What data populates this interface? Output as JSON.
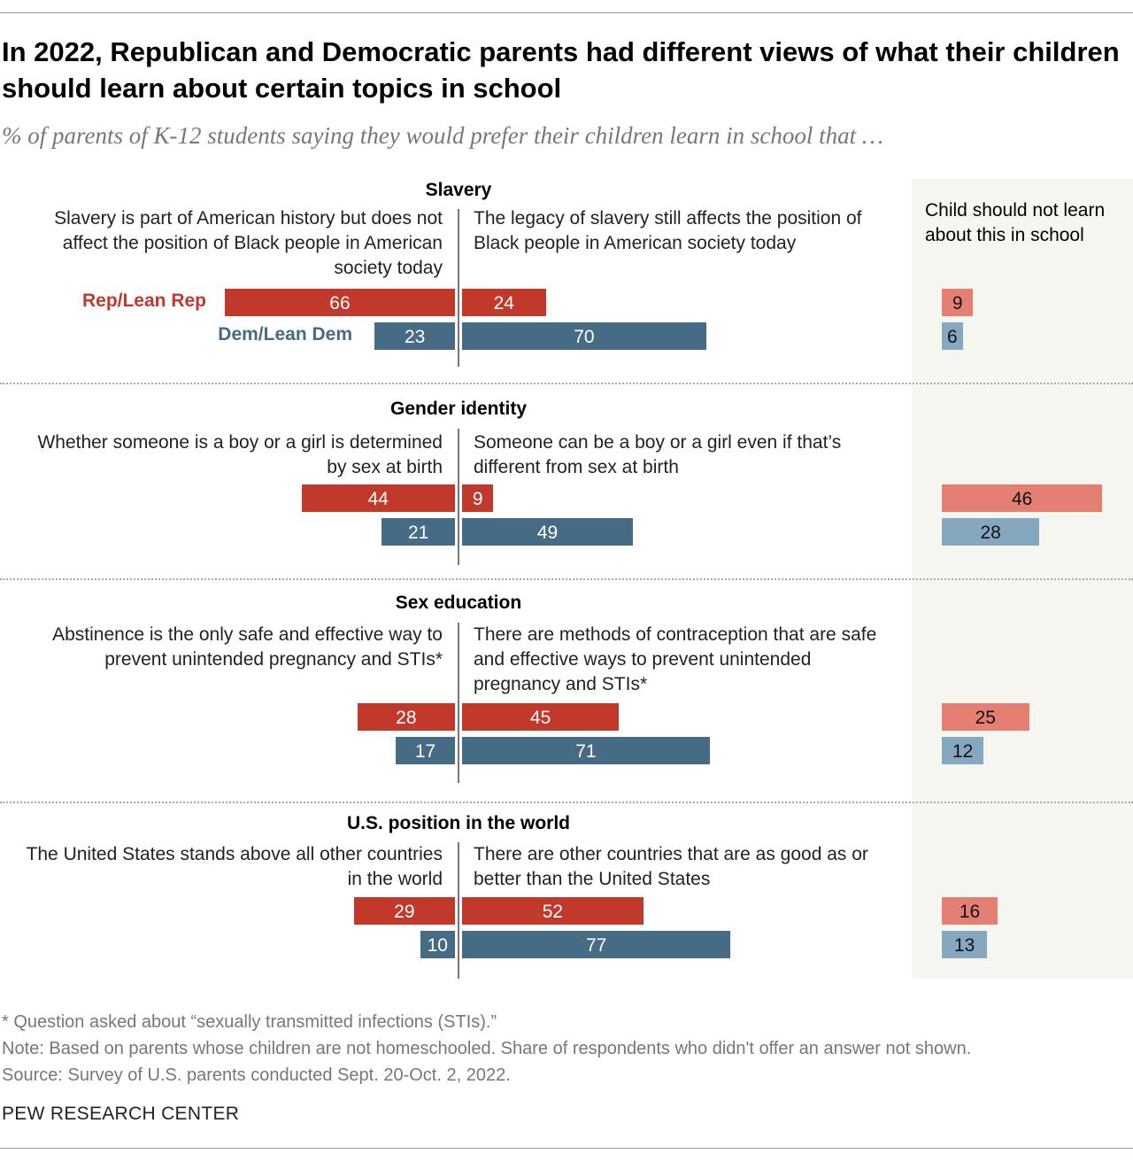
{
  "title": "In 2022, Republican and Democratic parents had different views of what their children should learn about certain topics in school",
  "subtitle": "% of parents of K-12 students saying they would prefer their children learn in school that …",
  "third_column_header": "Child should not learn about this in school",
  "colors": {
    "rep": "#c0392b",
    "dem": "#456b85",
    "rep_light": "#e57f73",
    "dem_light": "#85a8c0",
    "panel_bg": "#f6f6f1"
  },
  "chart_data": {
    "type": "bar",
    "orientation": "horizontal-diverging",
    "series_labels": [
      "Rep/Lean Rep",
      "Dem/Lean Dem"
    ],
    "sections": [
      {
        "topic": "Slavery",
        "left_label": "Slavery is part of American history but does not affect the position of Black people in American society today",
        "right_label": "The legacy of slavery still affects the position of Black people in American society today",
        "rep": {
          "left": 66,
          "right": 24,
          "not_learn": 9
        },
        "dem": {
          "left": 23,
          "right": 70,
          "not_learn": 6
        }
      },
      {
        "topic": "Gender identity",
        "left_label": "Whether someone is a boy or a girl is determined by sex at birth",
        "right_label": "Someone can be a boy or a girl even if that’s different from sex at birth",
        "rep": {
          "left": 44,
          "right": 9,
          "not_learn": 46
        },
        "dem": {
          "left": 21,
          "right": 49,
          "not_learn": 28
        }
      },
      {
        "topic": "Sex education",
        "left_label": "Abstinence is the only safe and effective way to prevent unintended pregnancy and STIs*",
        "right_label": "There are methods of contraception that are safe and effective ways to prevent unintended pregnancy and STIs*",
        "rep": {
          "left": 28,
          "right": 45,
          "not_learn": 25
        },
        "dem": {
          "left": 17,
          "right": 71,
          "not_learn": 12
        }
      },
      {
        "topic": "U.S. position in the world",
        "left_label": "The United States stands above all other countries in the world",
        "right_label": "There are other countries that are as good as or better than the United States",
        "rep": {
          "left": 29,
          "right": 52,
          "not_learn": 16
        },
        "dem": {
          "left": 10,
          "right": 77,
          "not_learn": 13
        }
      }
    ]
  },
  "footnotes": {
    "asterisk": "* Question asked about “sexually transmitted infections (STIs).”",
    "note": "Note: Based on parents whose children are not homeschooled. Share of respondents who didn't offer an answer not shown.",
    "source": "Source: Survey of U.S. parents conducted Sept. 20-Oct. 2, 2022."
  },
  "brand": "PEW RESEARCH CENTER"
}
